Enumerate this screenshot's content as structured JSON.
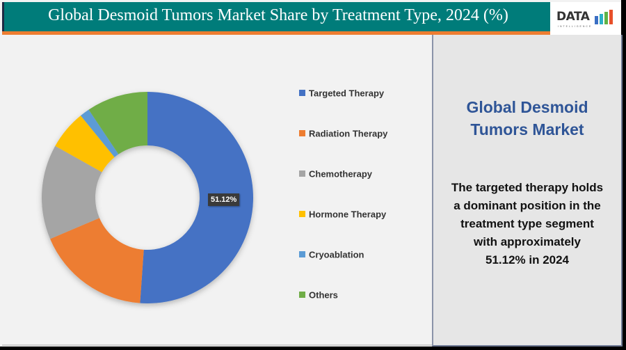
{
  "header": {
    "title": "Global Desmoid Tumors Market Share by Treatment Type, 2024 (%)",
    "logo_text": "DATA",
    "logo_subtext": "INTELLIGENCE"
  },
  "side_panel": {
    "title_line1": "Global Desmoid",
    "title_line2": "Tumors Market",
    "body_lines": [
      "The targeted therapy holds",
      "a dominant position in the",
      "treatment type segment",
      "with approximately",
      "51.12% in 2024"
    ]
  },
  "colors": {
    "header_bg": "#007c7a",
    "accent_bar": "#ed7d31",
    "side_title": "#2f5597"
  },
  "chart_data": {
    "type": "pie",
    "subtype": "donut",
    "title": "Global Desmoid Tumors Market Share by Treatment Type, 2024 (%)",
    "categories": [
      "Targeted Therapy",
      "Radiation Therapy",
      "Chemotherapy",
      "Hormone Therapy",
      "Cryoablation",
      "Others"
    ],
    "values": [
      51.12,
      17.5,
      14.5,
      6.0,
      1.5,
      9.38
    ],
    "colors": [
      "#4472c4",
      "#ed7d31",
      "#a5a5a5",
      "#ffc000",
      "#5b9bd5",
      "#70ad47"
    ],
    "data_labels": [
      {
        "category": "Targeted Therapy",
        "text": "51.12%"
      }
    ],
    "legend_position": "right",
    "unit": "%"
  }
}
